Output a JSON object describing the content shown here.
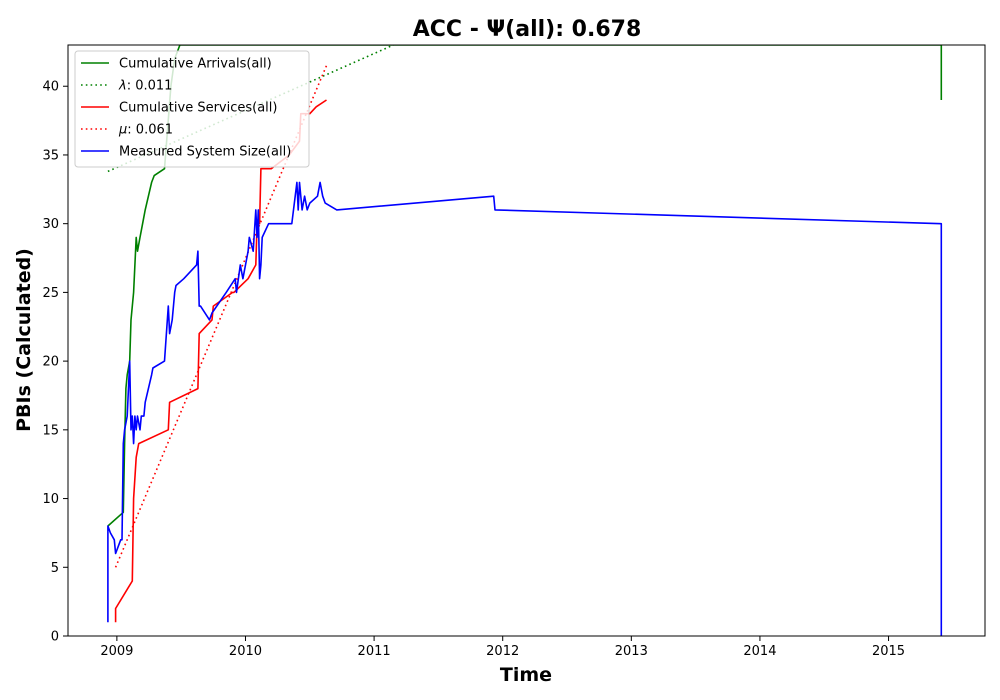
{
  "chart_data": {
    "type": "line",
    "title": "ACC -  Ψ(all): 0.678",
    "xlabel": "Time",
    "ylabel": "PBIs (Calculated)",
    "xlim": [
      2008.62,
      2015.75
    ],
    "ylim": [
      0,
      43
    ],
    "xticks": [
      2009,
      2010,
      2011,
      2012,
      2013,
      2014,
      2015
    ],
    "xtick_labels": [
      "2009",
      "2010",
      "2011",
      "2012",
      "2013",
      "2014",
      "2015"
    ],
    "yticks": [
      0,
      5,
      10,
      15,
      20,
      25,
      30,
      35,
      40
    ],
    "ytick_labels": [
      "0",
      "5",
      "10",
      "15",
      "20",
      "25",
      "30",
      "35",
      "40"
    ],
    "grid": false,
    "legend_position": "top-left",
    "series": [
      {
        "name": "Cumulative Arrivals(all)",
        "color": "#008000",
        "style": "solid",
        "x": [
          2008.93,
          2009.05,
          2009.06,
          2009.07,
          2009.08,
          2009.1,
          2009.11,
          2009.13,
          2009.15,
          2009.16,
          2009.18,
          2009.2,
          2009.22,
          2009.27,
          2009.29,
          2009.37,
          2009.42,
          2009.45,
          2009.49,
          2009.52,
          2015.41,
          2015.41
        ],
        "y": [
          8,
          9,
          14,
          18,
          19,
          20,
          23,
          25,
          29,
          28,
          29,
          30,
          31,
          33,
          33.5,
          34,
          40,
          42,
          43,
          43,
          43,
          39
        ]
      },
      {
        "name": "λ: 0.011",
        "legend_prefix": "λ",
        "legend_value": ": 0.011",
        "color": "#008000",
        "style": "dotted",
        "x": [
          2008.93,
          2011.15
        ],
        "y": [
          33.8,
          43
        ]
      },
      {
        "name": "Cumulative Services(all)",
        "color": "#ff0000",
        "style": "solid",
        "x": [
          2008.99,
          2008.99,
          2009.12,
          2009.13,
          2009.15,
          2009.17,
          2009.4,
          2009.41,
          2009.63,
          2009.64,
          2009.74,
          2009.75,
          2009.9,
          2009.91,
          2010.02,
          2010.08,
          2010.09,
          2010.11,
          2010.12,
          2010.19,
          2010.2,
          2010.34,
          2010.42,
          2010.43,
          2010.5,
          2010.55,
          2010.63
        ],
        "y": [
          1,
          2,
          4,
          10,
          13,
          14,
          15,
          17,
          18,
          22,
          23,
          24,
          25,
          25,
          26,
          27,
          30,
          30,
          34,
          34,
          34,
          35,
          36,
          38,
          38,
          38.5,
          39
        ]
      },
      {
        "name": "μ: 0.061",
        "legend_prefix": "μ",
        "legend_value": ": 0.061",
        "color": "#ff0000",
        "style": "dotted",
        "x": [
          2008.99,
          2010.63
        ],
        "y": [
          5,
          41.5
        ]
      },
      {
        "name": "Measured System Size(all)",
        "color": "#0000ff",
        "style": "solid",
        "x": [
          2008.93,
          2008.93,
          2008.95,
          2008.98,
          2008.99,
          2009.03,
          2009.04,
          2009.05,
          2009.06,
          2009.08,
          2009.1,
          2009.11,
          2009.12,
          2009.13,
          2009.14,
          2009.15,
          2009.16,
          2009.18,
          2009.19,
          2009.21,
          2009.22,
          2009.27,
          2009.28,
          2009.37,
          2009.4,
          2009.41,
          2009.43,
          2009.45,
          2009.46,
          2009.52,
          2009.62,
          2009.63,
          2009.64,
          2009.65,
          2009.72,
          2009.74,
          2009.85,
          2009.92,
          2009.93,
          2009.96,
          2009.98,
          2010.02,
          2010.03,
          2010.06,
          2010.08,
          2010.09,
          2010.1,
          2010.11,
          2010.12,
          2010.13,
          2010.18,
          2010.36,
          2010.4,
          2010.41,
          2010.42,
          2010.44,
          2010.46,
          2010.48,
          2010.5,
          2010.56,
          2010.58,
          2010.6,
          2010.62,
          2010.71,
          2011.93,
          2011.94,
          2015.41,
          2015.41
        ],
        "y": [
          1,
          8,
          7.5,
          7,
          6,
          7,
          7,
          14,
          15,
          16,
          20,
          15,
          16,
          14,
          16,
          15,
          16,
          15,
          16,
          16,
          17,
          19,
          19.5,
          20,
          24,
          22,
          23,
          25,
          25.5,
          26,
          27,
          28,
          24,
          24,
          23,
          23.5,
          25,
          26,
          25,
          27,
          26,
          28,
          29,
          28,
          31,
          29,
          31,
          26,
          27,
          29,
          30,
          30,
          33,
          31,
          33,
          31,
          32,
          31,
          31.5,
          32,
          33,
          32,
          31.5,
          31,
          32,
          31,
          30,
          0
        ]
      }
    ]
  }
}
